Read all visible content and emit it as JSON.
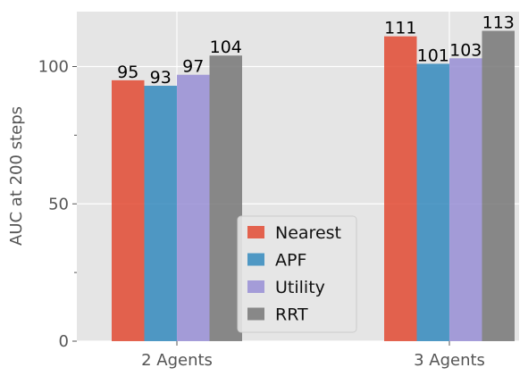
{
  "chart_data": {
    "type": "bar",
    "categories": [
      "2 Agents",
      "3 Agents"
    ],
    "series": [
      {
        "name": "Nearest",
        "color": "#E24A33",
        "values": [
          95,
          111
        ]
      },
      {
        "name": "APF",
        "color": "#348ABD",
        "values": [
          93,
          101
        ]
      },
      {
        "name": "Utility",
        "color": "#988ED5",
        "values": [
          97,
          103
        ]
      },
      {
        "name": "RRT",
        "color": "#777777",
        "values": [
          104,
          113
        ]
      }
    ],
    "data_labels": [
      [
        "95",
        "111"
      ],
      [
        "93",
        "101"
      ],
      [
        "97",
        "103"
      ],
      [
        "104",
        "113"
      ]
    ],
    "title": "",
    "xlabel": "",
    "ylabel": "AUC at 200 steps",
    "ylim": [
      0,
      120
    ],
    "yticks": [
      0,
      50,
      100
    ],
    "yticks_minor": [
      25,
      75
    ],
    "grid": true,
    "legend": "lower-center",
    "plot_background": "#E5E5E5",
    "grid_color": "#FFFFFF"
  }
}
